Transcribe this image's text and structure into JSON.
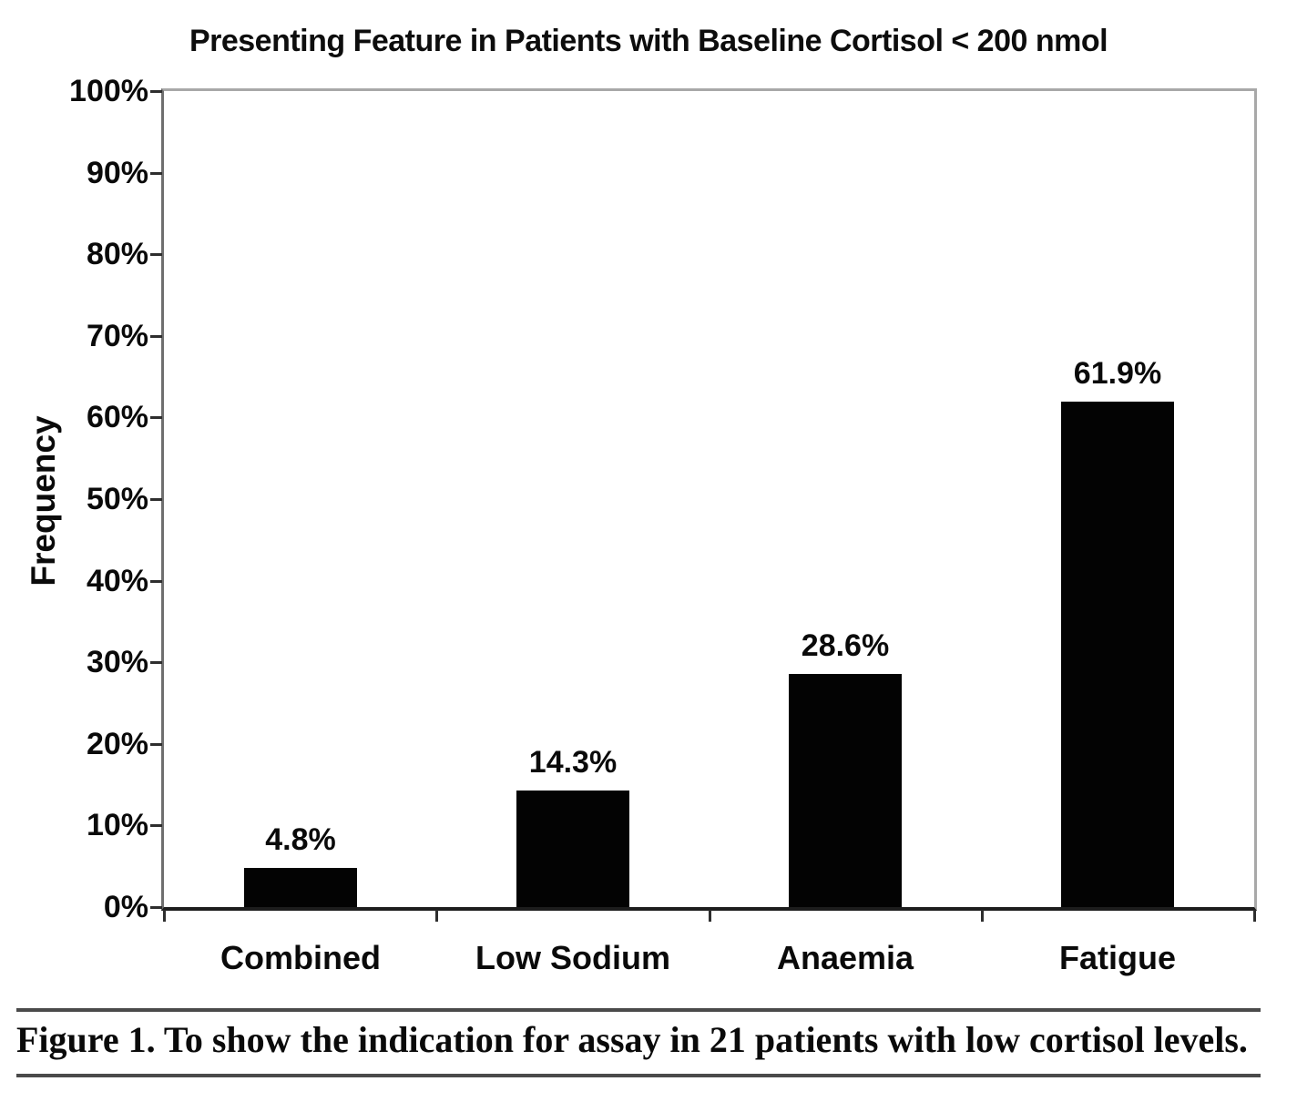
{
  "title": "Presenting Feature in Patients with Baseline Cortisol < 200 nmol",
  "caption": "Figure 1. To show the indication for assay in 21 patients with low cortisol levels.",
  "chart_data": {
    "type": "bar",
    "title": "Presenting Feature in Patients with Baseline Cortisol < 200 nmol",
    "categories": [
      "Combined",
      "Low Sodium",
      "Anaemia",
      "Fatigue"
    ],
    "values": [
      4.8,
      14.3,
      28.6,
      61.9
    ],
    "data_labels": [
      "4.8%",
      "14.3%",
      "28.6%",
      "61.9%"
    ],
    "xlabel": "",
    "ylabel": "Frequency",
    "ylim": [
      0,
      100
    ],
    "ytick_step": 10,
    "ytick_labels": [
      "0%",
      "10%",
      "20%",
      "30%",
      "40%",
      "50%",
      "60%",
      "70%",
      "80%",
      "90%",
      "100%"
    ],
    "grid": false,
    "legend": "none",
    "bar_color": "#030303"
  },
  "colors": {
    "bar": "#030303",
    "text": "#0a0a0a",
    "axis_left": "#6f6f6f",
    "axis_bottom": "#1d1d1d",
    "frame_light": "#a8a8a8",
    "tick": "#2e2e2e",
    "caption_rule": "#4a4a4a",
    "background": "#ffffff"
  }
}
